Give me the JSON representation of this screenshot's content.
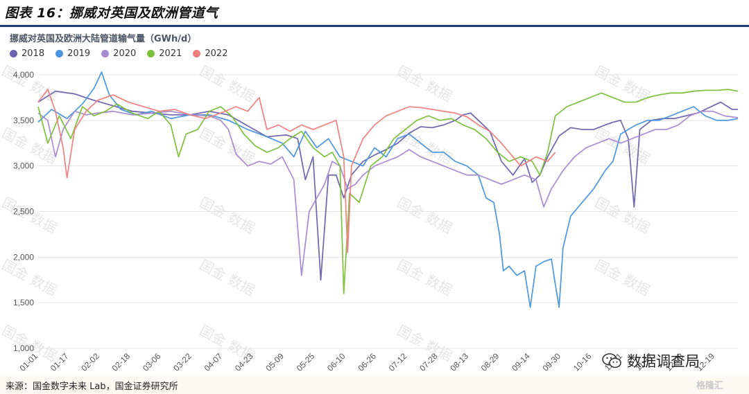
{
  "figure_title": "图表 16：挪威对英国及欧洲管道气",
  "source_note": "来源：国金数字未来 Lab，国金证券研究所",
  "watermark_text": "国金 数据",
  "wechat_badge": "数据调查局",
  "corner_logo": "格隆汇",
  "chart_data": {
    "type": "line",
    "title": "挪威对英国及欧洲大陆管道输气量（GWh/d）",
    "xlabel": "",
    "ylabel": "",
    "ylim": [
      1000,
      4000
    ],
    "yticks": [
      1000,
      1500,
      2000,
      2500,
      3000,
      3500,
      4000
    ],
    "ytick_labels": [
      "1,000",
      "1,500",
      "2,000",
      "2,500",
      "3,000",
      "3,500",
      "4,000"
    ],
    "x_tick_labels": [
      "01-01",
      "01-17",
      "02-02",
      "02-18",
      "03-06",
      "03-22",
      "04-07",
      "04-23",
      "05-09",
      "05-25",
      "06-10",
      "06-26",
      "07-12",
      "07-28",
      "08-13",
      "08-29",
      "09-14",
      "09-30",
      "10-16",
      "11-01",
      "11-17",
      "12-03",
      "12-19"
    ],
    "x_tick_day": [
      1,
      17,
      33,
      49,
      65,
      81,
      97,
      113,
      129,
      145,
      161,
      177,
      193,
      209,
      225,
      241,
      257,
      273,
      289,
      305,
      321,
      337,
      353
    ],
    "grid": "horizontal",
    "legend_position": "top-left",
    "series": [
      {
        "name": "2018",
        "color": "#6b63ad",
        "points": [
          [
            1,
            3700
          ],
          [
            10,
            3820
          ],
          [
            20,
            3790
          ],
          [
            30,
            3720
          ],
          [
            40,
            3660
          ],
          [
            50,
            3600
          ],
          [
            60,
            3580
          ],
          [
            70,
            3560
          ],
          [
            80,
            3560
          ],
          [
            90,
            3600
          ],
          [
            100,
            3560
          ],
          [
            110,
            3440
          ],
          [
            120,
            3320
          ],
          [
            130,
            3340
          ],
          [
            136,
            3300
          ],
          [
            140,
            2850
          ],
          [
            144,
            3100
          ],
          [
            148,
            1750
          ],
          [
            152,
            2900
          ],
          [
            156,
            2900
          ],
          [
            160,
            2650
          ],
          [
            164,
            2900
          ],
          [
            170,
            3050
          ],
          [
            176,
            3120
          ],
          [
            182,
            3180
          ],
          [
            188,
            3250
          ],
          [
            194,
            3360
          ],
          [
            200,
            3430
          ],
          [
            206,
            3420
          ],
          [
            212,
            3450
          ],
          [
            218,
            3500
          ],
          [
            222,
            3560
          ],
          [
            226,
            3580
          ],
          [
            230,
            3500
          ],
          [
            236,
            3380
          ],
          [
            242,
            3050
          ],
          [
            248,
            2900
          ],
          [
            254,
            3080
          ],
          [
            258,
            2820
          ],
          [
            262,
            2900
          ],
          [
            266,
            3100
          ],
          [
            272,
            3330
          ],
          [
            278,
            3420
          ],
          [
            284,
            3400
          ],
          [
            290,
            3400
          ],
          [
            296,
            3450
          ],
          [
            300,
            3480
          ],
          [
            304,
            3500
          ],
          [
            308,
            3300
          ],
          [
            311,
            2550
          ],
          [
            314,
            3400
          ],
          [
            320,
            3500
          ],
          [
            326,
            3520
          ],
          [
            332,
            3520
          ],
          [
            338,
            3550
          ],
          [
            344,
            3580
          ],
          [
            350,
            3640
          ],
          [
            356,
            3700
          ],
          [
            362,
            3620
          ],
          [
            365,
            3620
          ]
        ]
      },
      {
        "name": "2019",
        "color": "#4a95dd",
        "points": [
          [
            1,
            3480
          ],
          [
            8,
            3620
          ],
          [
            16,
            3520
          ],
          [
            24,
            3680
          ],
          [
            30,
            3850
          ],
          [
            34,
            4030
          ],
          [
            38,
            3780
          ],
          [
            44,
            3620
          ],
          [
            52,
            3560
          ],
          [
            60,
            3600
          ],
          [
            70,
            3520
          ],
          [
            80,
            3560
          ],
          [
            90,
            3560
          ],
          [
            100,
            3500
          ],
          [
            110,
            3400
          ],
          [
            120,
            3320
          ],
          [
            128,
            3250
          ],
          [
            134,
            3100
          ],
          [
            140,
            3380
          ],
          [
            146,
            3200
          ],
          [
            152,
            3300
          ],
          [
            158,
            3100
          ],
          [
            164,
            3050
          ],
          [
            170,
            3000
          ],
          [
            176,
            3200
          ],
          [
            182,
            3100
          ],
          [
            188,
            3300
          ],
          [
            194,
            3350
          ],
          [
            200,
            3250
          ],
          [
            206,
            3150
          ],
          [
            212,
            3150
          ],
          [
            218,
            3050
          ],
          [
            224,
            3000
          ],
          [
            230,
            2900
          ],
          [
            234,
            2650
          ],
          [
            238,
            2600
          ],
          [
            241,
            2250
          ],
          [
            243,
            1850
          ],
          [
            246,
            1900
          ],
          [
            250,
            1800
          ],
          [
            254,
            1850
          ],
          [
            257,
            1450
          ],
          [
            260,
            1900
          ],
          [
            264,
            1950
          ],
          [
            268,
            1980
          ],
          [
            270,
            1700
          ],
          [
            272,
            1450
          ],
          [
            274,
            2100
          ],
          [
            278,
            2450
          ],
          [
            282,
            2550
          ],
          [
            286,
            2650
          ],
          [
            290,
            2750
          ],
          [
            296,
            2950
          ],
          [
            300,
            3050
          ],
          [
            304,
            3350
          ],
          [
            308,
            3400
          ],
          [
            312,
            3450
          ],
          [
            318,
            3500
          ],
          [
            324,
            3500
          ],
          [
            330,
            3550
          ],
          [
            336,
            3600
          ],
          [
            342,
            3650
          ],
          [
            348,
            3550
          ],
          [
            354,
            3500
          ],
          [
            360,
            3500
          ],
          [
            365,
            3520
          ]
        ]
      },
      {
        "name": "2020",
        "color": "#a78bd0",
        "points": [
          [
            1,
            3580
          ],
          [
            6,
            3500
          ],
          [
            10,
            3100
          ],
          [
            14,
            3400
          ],
          [
            20,
            3600
          ],
          [
            26,
            3560
          ],
          [
            32,
            3580
          ],
          [
            40,
            3600
          ],
          [
            50,
            3560
          ],
          [
            60,
            3580
          ],
          [
            70,
            3600
          ],
          [
            80,
            3560
          ],
          [
            90,
            3550
          ],
          [
            96,
            3500
          ],
          [
            100,
            3400
          ],
          [
            104,
            3130
          ],
          [
            110,
            3000
          ],
          [
            116,
            3050
          ],
          [
            122,
            3020
          ],
          [
            128,
            3100
          ],
          [
            134,
            2850
          ],
          [
            138,
            1800
          ],
          [
            142,
            2500
          ],
          [
            146,
            2650
          ],
          [
            150,
            2800
          ],
          [
            154,
            3050
          ],
          [
            158,
            3000
          ],
          [
            162,
            2750
          ],
          [
            166,
            2800
          ],
          [
            170,
            2900
          ],
          [
            176,
            3000
          ],
          [
            182,
            3050
          ],
          [
            188,
            3100
          ],
          [
            194,
            3180
          ],
          [
            200,
            3100
          ],
          [
            206,
            3050
          ],
          [
            212,
            3000
          ],
          [
            218,
            2950
          ],
          [
            224,
            2900
          ],
          [
            230,
            2900
          ],
          [
            236,
            2850
          ],
          [
            242,
            2800
          ],
          [
            248,
            2850
          ],
          [
            254,
            2900
          ],
          [
            260,
            2850
          ],
          [
            264,
            2550
          ],
          [
            268,
            2750
          ],
          [
            274,
            2950
          ],
          [
            280,
            3100
          ],
          [
            286,
            3200
          ],
          [
            292,
            3250
          ],
          [
            298,
            3300
          ],
          [
            304,
            3250
          ],
          [
            310,
            3300
          ],
          [
            316,
            3350
          ],
          [
            322,
            3400
          ],
          [
            328,
            3400
          ],
          [
            334,
            3450
          ],
          [
            340,
            3550
          ],
          [
            346,
            3600
          ],
          [
            352,
            3600
          ],
          [
            358,
            3550
          ],
          [
            365,
            3530
          ]
        ]
      },
      {
        "name": "2021",
        "color": "#7cbf3c",
        "points": [
          [
            1,
            3650
          ],
          [
            6,
            3250
          ],
          [
            12,
            3550
          ],
          [
            18,
            3300
          ],
          [
            24,
            3650
          ],
          [
            30,
            3550
          ],
          [
            36,
            3600
          ],
          [
            42,
            3680
          ],
          [
            50,
            3580
          ],
          [
            58,
            3520
          ],
          [
            64,
            3600
          ],
          [
            70,
            3450
          ],
          [
            74,
            3100
          ],
          [
            78,
            3350
          ],
          [
            84,
            3400
          ],
          [
            90,
            3600
          ],
          [
            96,
            3650
          ],
          [
            102,
            3540
          ],
          [
            108,
            3350
          ],
          [
            114,
            3220
          ],
          [
            120,
            3150
          ],
          [
            126,
            3200
          ],
          [
            132,
            3300
          ],
          [
            138,
            3380
          ],
          [
            144,
            3200
          ],
          [
            150,
            3100
          ],
          [
            154,
            3150
          ],
          [
            158,
            3000
          ],
          [
            160,
            1600
          ],
          [
            163,
            2700
          ],
          [
            168,
            2600
          ],
          [
            174,
            3000
          ],
          [
            180,
            3100
          ],
          [
            186,
            3300
          ],
          [
            192,
            3400
          ],
          [
            198,
            3500
          ],
          [
            204,
            3550
          ],
          [
            210,
            3500
          ],
          [
            216,
            3520
          ],
          [
            222,
            3450
          ],
          [
            228,
            3400
          ],
          [
            234,
            3300
          ],
          [
            240,
            3150
          ],
          [
            246,
            3050
          ],
          [
            252,
            3100
          ],
          [
            258,
            3050
          ],
          [
            262,
            2900
          ],
          [
            266,
            3150
          ],
          [
            270,
            3550
          ],
          [
            276,
            3650
          ],
          [
            282,
            3700
          ],
          [
            288,
            3750
          ],
          [
            294,
            3800
          ],
          [
            300,
            3750
          ],
          [
            306,
            3700
          ],
          [
            312,
            3700
          ],
          [
            318,
            3750
          ],
          [
            324,
            3780
          ],
          [
            330,
            3800
          ],
          [
            336,
            3800
          ],
          [
            342,
            3820
          ],
          [
            348,
            3830
          ],
          [
            354,
            3830
          ],
          [
            360,
            3840
          ],
          [
            365,
            3820
          ]
        ]
      },
      {
        "name": "2022",
        "color": "#ee8080",
        "points": [
          [
            1,
            3700
          ],
          [
            6,
            3840
          ],
          [
            10,
            3600
          ],
          [
            14,
            3200
          ],
          [
            16,
            2870
          ],
          [
            20,
            3400
          ],
          [
            26,
            3600
          ],
          [
            32,
            3720
          ],
          [
            40,
            3780
          ],
          [
            48,
            3700
          ],
          [
            56,
            3650
          ],
          [
            64,
            3600
          ],
          [
            72,
            3620
          ],
          [
            80,
            3560
          ],
          [
            88,
            3520
          ],
          [
            96,
            3580
          ],
          [
            104,
            3650
          ],
          [
            110,
            3600
          ],
          [
            116,
            3750
          ],
          [
            120,
            3400
          ],
          [
            126,
            3450
          ],
          [
            132,
            3380
          ],
          [
            138,
            3450
          ],
          [
            144,
            3400
          ],
          [
            150,
            3450
          ],
          [
            156,
            3500
          ],
          [
            160,
            3100
          ],
          [
            162,
            2050
          ],
          [
            164,
            3000
          ],
          [
            170,
            3300
          ],
          [
            176,
            3450
          ],
          [
            182,
            3550
          ],
          [
            188,
            3600
          ],
          [
            194,
            3650
          ],
          [
            200,
            3640
          ],
          [
            206,
            3620
          ],
          [
            212,
            3600
          ],
          [
            218,
            3580
          ],
          [
            224,
            3540
          ],
          [
            230,
            3450
          ],
          [
            236,
            3380
          ],
          [
            242,
            3250
          ],
          [
            248,
            3100
          ],
          [
            252,
            3000
          ],
          [
            256,
            3050
          ],
          [
            260,
            3100
          ],
          [
            266,
            3050
          ],
          [
            270,
            3150
          ]
        ]
      }
    ]
  }
}
